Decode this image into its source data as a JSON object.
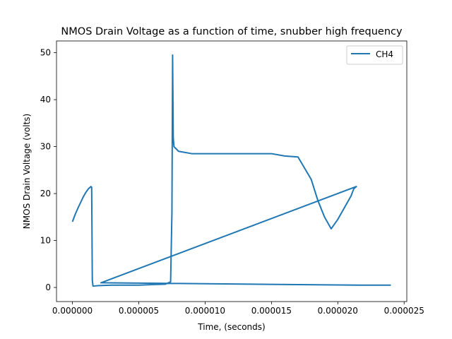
{
  "chart_data": {
    "type": "line",
    "title": "NMOS Drain Voltage as a function of time, snubber high frequency",
    "xlabel": "Time, (seconds)",
    "ylabel": "NMOS Drain Voltage (volts)",
    "xlim": [
      -1.2e-06,
      2.52e-05
    ],
    "ylim": [
      -3.0,
      52.5
    ],
    "x_ticks": [
      {
        "value": 0.0,
        "label": "0.000000"
      },
      {
        "value": 5e-06,
        "label": "0.000005"
      },
      {
        "value": 1e-05,
        "label": "0.000010"
      },
      {
        "value": 1.5e-05,
        "label": "0.000015"
      },
      {
        "value": 2e-05,
        "label": "0.000020"
      },
      {
        "value": 2.5e-05,
        "label": "0.000025"
      }
    ],
    "y_ticks": [
      {
        "value": 0,
        "label": "0"
      },
      {
        "value": 10,
        "label": "10"
      },
      {
        "value": 20,
        "label": "20"
      },
      {
        "value": 30,
        "label": "30"
      },
      {
        "value": 40,
        "label": "40"
      },
      {
        "value": 50,
        "label": "50"
      }
    ],
    "grid": false,
    "legend_position": "upper-right",
    "series": [
      {
        "name": "CH4",
        "color": "#1f77b4",
        "x": [
          0.0,
          2e-07,
          4e-07,
          6e-07,
          8e-07,
          1e-06,
          1.2e-06,
          1.4e-06,
          1.45e-06,
          1.5e-06,
          1.55e-06,
          2e-06,
          3e-06,
          4e-06,
          5e-06,
          6e-06,
          7e-06,
          7.4e-06,
          7.5e-06,
          7.55e-06,
          7.6e-06,
          7.65e-06,
          8e-06,
          9e-06,
          1e-05,
          1.1e-05,
          1.2e-05,
          1.3e-05,
          1.4e-05,
          1.5e-05,
          1.6e-05,
          1.7e-05,
          1.8e-05,
          1.85e-05,
          1.9e-05,
          1.95e-05,
          2e-05,
          2.05e-05,
          2.1e-05,
          2.12e-05,
          2.14e-05,
          2.15e-06,
          2.16e-05,
          2.2e-05,
          2.3e-05,
          2.4e-05
        ],
        "y": [
          14.0,
          15.5,
          16.8,
          18.0,
          19.2,
          20.2,
          21.0,
          21.5,
          21.3,
          1.5,
          0.3,
          0.4,
          0.5,
          0.5,
          0.5,
          0.6,
          0.7,
          1.2,
          16.0,
          49.5,
          32.0,
          30.0,
          29.0,
          28.5,
          28.5,
          28.5,
          28.5,
          28.5,
          28.5,
          28.5,
          28.0,
          27.8,
          23.0,
          18.5,
          15.0,
          12.5,
          14.5,
          17.0,
          19.5,
          21.0,
          21.5,
          1.0,
          0.5,
          0.5,
          0.5,
          0.5
        ]
      }
    ]
  }
}
